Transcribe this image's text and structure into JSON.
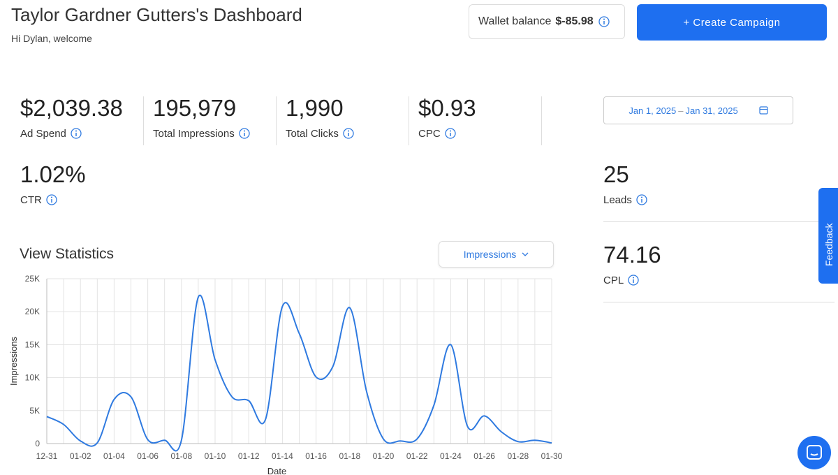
{
  "header": {
    "title": "Taylor Gardner Gutters's Dashboard",
    "subtitle": "Hi Dylan, welcome"
  },
  "wallet": {
    "label": "Wallet balance",
    "value": "$-85.98"
  },
  "create_button": "+ Create Campaign",
  "metrics": [
    {
      "value": "$2,039.38",
      "label": "Ad Spend"
    },
    {
      "value": "195,979",
      "label": "Total Impressions"
    },
    {
      "value": "1,990",
      "label": "Total Clicks"
    },
    {
      "value": "$0.93",
      "label": "CPC"
    },
    {
      "value": "1.02%",
      "label": "CTR"
    }
  ],
  "date_range": {
    "start": "Jan 1, 2025",
    "separator": "–",
    "end": "Jan 31, 2025"
  },
  "side_metrics": [
    {
      "value": "25",
      "label": "Leads"
    },
    {
      "value": "74.16",
      "label": "CPL"
    }
  ],
  "statistics": {
    "title": "View Statistics",
    "dropdown": "Impressions"
  },
  "feedback": "Feedback",
  "chart_data": {
    "type": "line",
    "x_label": "Date",
    "y_label": "Impressions",
    "categories": [
      "12-31",
      null,
      "01-02",
      null,
      "01-04",
      null,
      "01-06",
      null,
      "01-08",
      null,
      "01-10",
      null,
      "01-12",
      null,
      "01-14",
      null,
      "01-16",
      null,
      "01-18",
      null,
      "01-20",
      null,
      "01-22",
      null,
      "01-24",
      null,
      "01-26",
      null,
      "01-28",
      null,
      "01-30"
    ],
    "series": [
      {
        "name": "Impressions",
        "color": "#2f7ae0",
        "values": [
          4100,
          2900,
          400,
          100,
          6700,
          7100,
          600,
          500,
          500,
          22200,
          12700,
          7100,
          6500,
          3700,
          20800,
          16700,
          10100,
          11700,
          20600,
          7900,
          700,
          400,
          700,
          5800,
          15000,
          2600,
          4200,
          1800,
          300,
          500,
          100
        ]
      }
    ],
    "ylim": [
      0,
      25000
    ],
    "yticks": [
      0,
      {
        "value": 5000,
        "label": "5K"
      },
      {
        "value": 10000,
        "label": "10K"
      },
      {
        "value": 15000,
        "label": "15K"
      },
      {
        "value": 20000,
        "label": "20K"
      },
      {
        "value": 25000,
        "label": "25K"
      }
    ],
    "grid": true
  }
}
